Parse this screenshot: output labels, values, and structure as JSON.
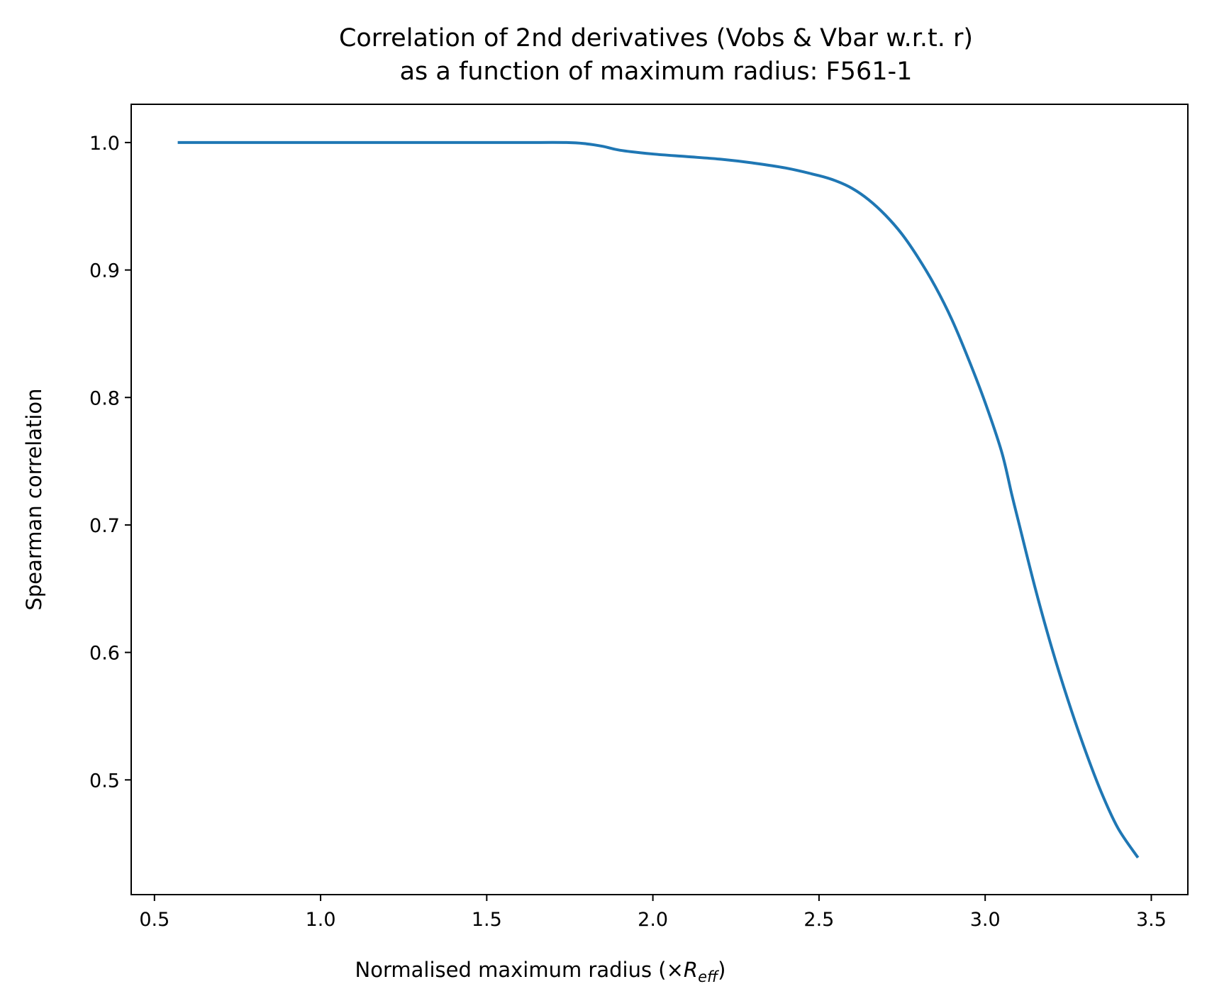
{
  "chart_data": {
    "type": "line",
    "title_line1": "Correlation of 2nd derivatives (Vobs & Vbar w.r.t. r)",
    "title_line2": "as a function of maximum radius: F561-1",
    "xlabel_prefix": "Normalised maximum radius (×",
    "xlabel_math_main": "R",
    "xlabel_math_sub": "eff",
    "xlabel_suffix": ")",
    "ylabel": "Spearman correlation",
    "xlim": [
      0.43,
      3.61
    ],
    "ylim": [
      0.41,
      1.03
    ],
    "xticks": [
      0.5,
      1.0,
      1.5,
      2.0,
      2.5,
      3.0,
      3.5
    ],
    "xtick_labels": [
      "0.5",
      "1.0",
      "1.5",
      "2.0",
      "2.5",
      "3.0",
      "3.5"
    ],
    "yticks": [
      0.5,
      0.6,
      0.7,
      0.8,
      0.9,
      1.0
    ],
    "ytick_labels": [
      "0.5",
      "0.6",
      "0.7",
      "0.8",
      "0.9",
      "1.0"
    ],
    "grid": false,
    "line_color": "#1f77b4",
    "series": [
      {
        "x": [
          0.57,
          0.8,
          1.0,
          1.2,
          1.4,
          1.6,
          1.74,
          1.8,
          1.85,
          1.9,
          2.0,
          2.1,
          2.2,
          2.3,
          2.4,
          2.5,
          2.55,
          2.6,
          2.65,
          2.7,
          2.75,
          2.8,
          2.85,
          2.9,
          2.95,
          3.0,
          3.05,
          3.08,
          3.1,
          3.15,
          3.2,
          3.25,
          3.3,
          3.35,
          3.4,
          3.46
        ],
        "y": [
          1.0,
          1.0,
          1.0,
          1.0,
          1.0,
          1.0,
          1.0,
          0.999,
          0.997,
          0.994,
          0.991,
          0.989,
          0.987,
          0.984,
          0.98,
          0.974,
          0.97,
          0.964,
          0.955,
          0.943,
          0.928,
          0.909,
          0.887,
          0.861,
          0.83,
          0.796,
          0.757,
          0.724,
          0.703,
          0.651,
          0.604,
          0.562,
          0.524,
          0.49,
          0.462,
          0.439
        ]
      }
    ]
  }
}
